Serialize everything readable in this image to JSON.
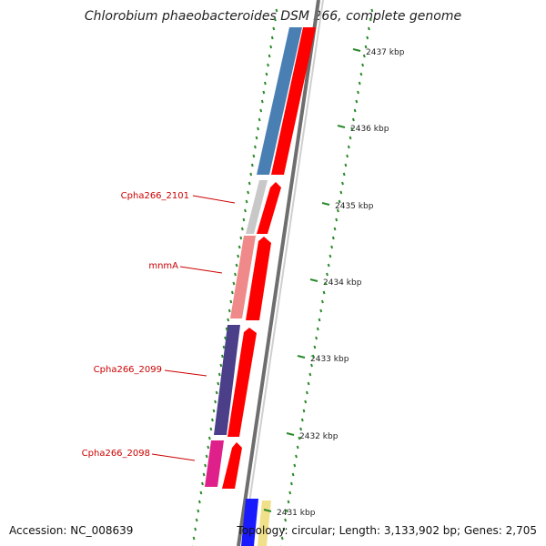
{
  "title": "Chlorobium phaeobacteroides DSM 266, complete genome",
  "footer": {
    "accession": "Accession: NC_008639",
    "topology": "Topology: circular; Length: 3,133,902 bp; Genes: 2,705"
  },
  "colors": {
    "backbone": "#7a7a7a",
    "cds_red": "#ff0000",
    "tick_green": "#2a8a2a",
    "label_red": "#cc0000"
  },
  "ticks": [
    {
      "label": "2437 kbp"
    },
    {
      "label": "2436 kbp"
    },
    {
      "label": "2435 kbp"
    },
    {
      "label": "2434 kbp"
    },
    {
      "label": "2433 kbp"
    },
    {
      "label": "2432 kbp"
    },
    {
      "label": "2431 kbp"
    }
  ],
  "gene_labels": [
    {
      "label": "Cpha266_2101"
    },
    {
      "label": "mnmA"
    },
    {
      "label": "Cpha266_2099"
    },
    {
      "label": "Cpha266_2098"
    }
  ]
}
